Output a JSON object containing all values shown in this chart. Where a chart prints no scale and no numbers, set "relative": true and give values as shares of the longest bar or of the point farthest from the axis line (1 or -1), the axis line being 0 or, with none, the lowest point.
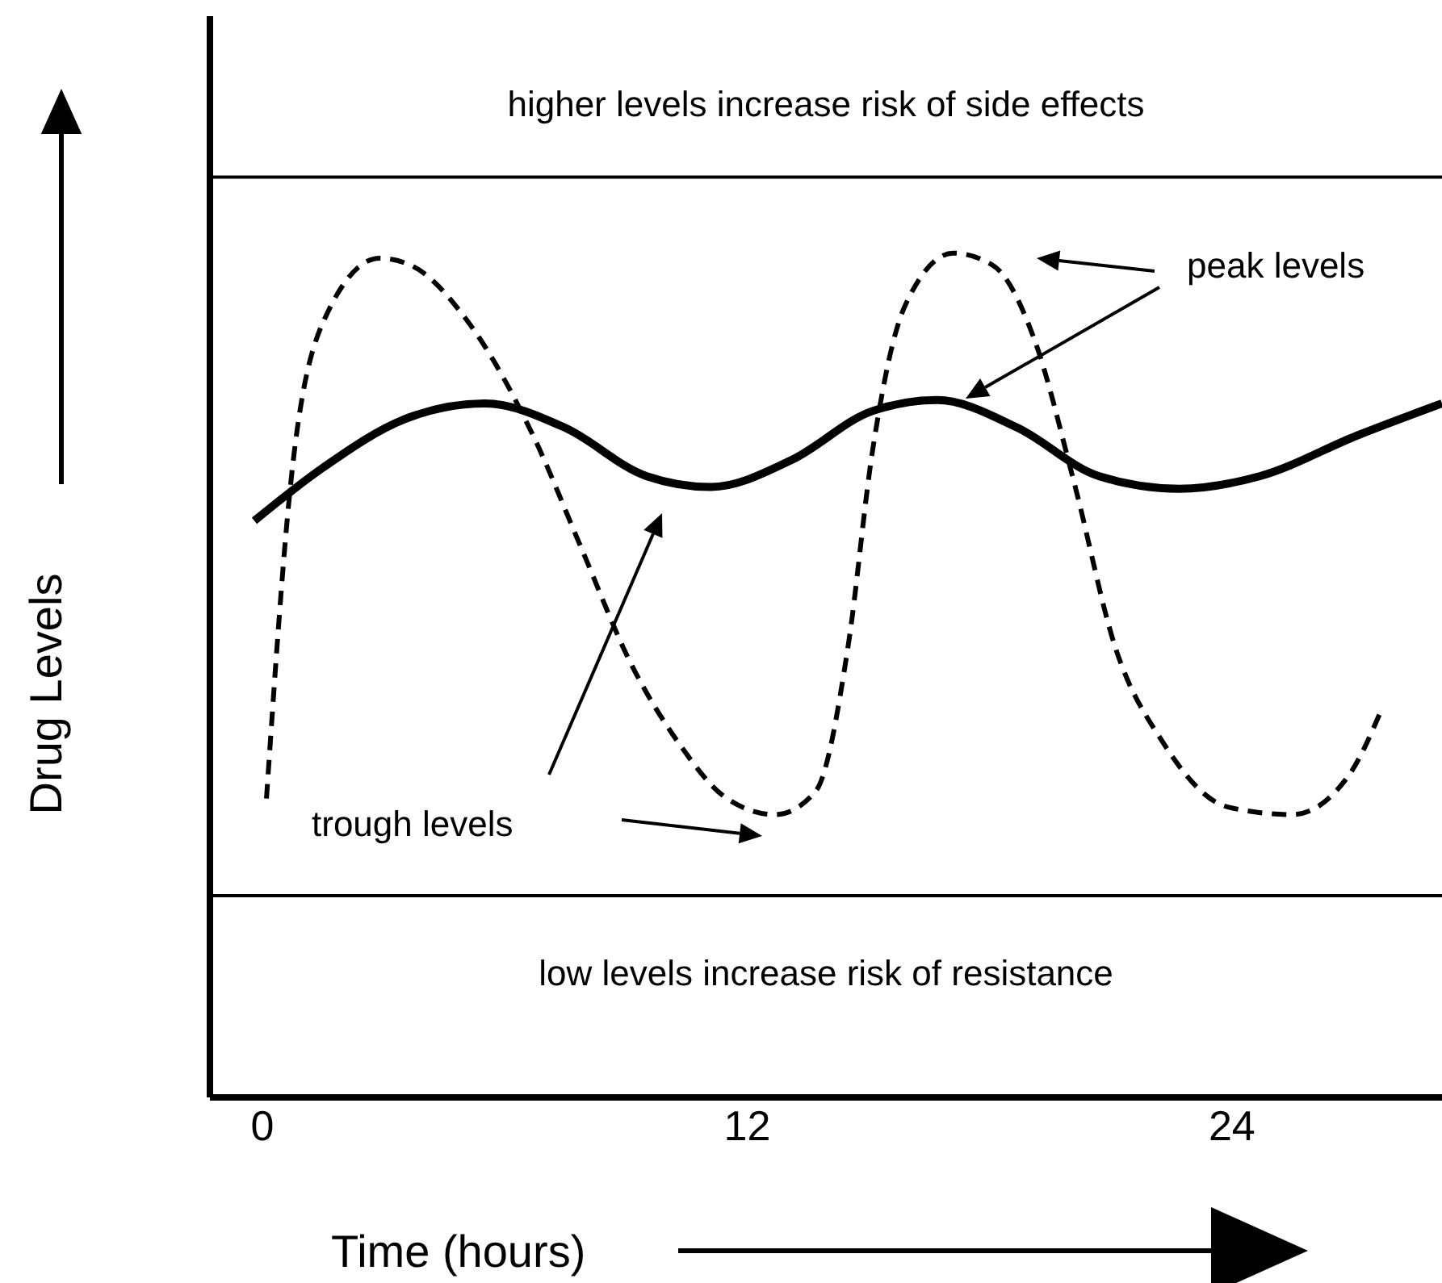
{
  "chart_data": {
    "type": "line",
    "relative": true,
    "xlabel": "Time (hours)",
    "ylabel": "Drug Levels",
    "xlim": [
      -1.3,
      29.2
    ],
    "xticks": [
      0,
      12,
      24
    ],
    "grid": false,
    "legend": false,
    "marker": "none",
    "series": [
      {
        "color": "#000000",
        "line_style": "dashed",
        "x": [
          0.1,
          0.7,
          1.5,
          2.9,
          3.7,
          5.1,
          6.7,
          7.9,
          9.1,
          10.3,
          11.5,
          12.7,
          13.7,
          14.5,
          15.1,
          15.9,
          17.1,
          18.1,
          19.1,
          20.1,
          21.1,
          22.3,
          23.9,
          25.5,
          26.9,
          27.7
        ],
        "values": [
          0.354,
          0.727,
          0.918,
          0.994,
          0.985,
          0.918,
          0.784,
          0.65,
          0.516,
          0.42,
          0.354,
          0.335,
          0.363,
          0.535,
          0.765,
          0.937,
          1.0,
          0.985,
          0.899,
          0.727,
          0.535,
          0.42,
          0.344,
          0.335,
          0.382,
          0.459
        ]
      },
      {
        "color": "#000000",
        "line_style": "solid",
        "x": [
          -0.2,
          1.5,
          3.5,
          5.5,
          7.5,
          9.5,
          11.1,
          13.1,
          15.1,
          16.7,
          18.7,
          20.7,
          22.7,
          24.7,
          27.1,
          29.2
        ],
        "values": [
          0.683,
          0.746,
          0.803,
          0.822,
          0.793,
          0.736,
          0.723,
          0.755,
          0.813,
          0.826,
          0.793,
          0.736,
          0.721,
          0.736,
          0.784,
          0.822
        ]
      }
    ],
    "ref_lines": [
      {
        "axis": "y",
        "value": 1.09,
        "label": "higher levels increase risk of side effects",
        "color": "#000000"
      },
      {
        "axis": "y",
        "value": 0.239,
        "label": "low levels increase risk of resistance",
        "color": "#000000"
      }
    ],
    "annotations": [
      "peak levels",
      "trough levels"
    ]
  }
}
